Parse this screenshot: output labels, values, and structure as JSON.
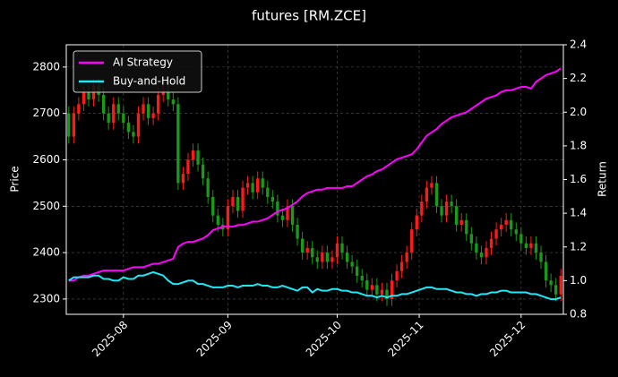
{
  "chart_data": {
    "type": "candlestick",
    "title": "futures [RM.ZCE]",
    "y_label": "Price",
    "y2_label": "Return",
    "categories": [
      null,
      null,
      null,
      null,
      null,
      null,
      null,
      null,
      null,
      null,
      null,
      null,
      null,
      null,
      null,
      null,
      null,
      null,
      null,
      null,
      null,
      null,
      null,
      null,
      null,
      null,
      null,
      null,
      null,
      null,
      null,
      null,
      null,
      null,
      null,
      null,
      null,
      null,
      null,
      null,
      null,
      null,
      null,
      null,
      null,
      null,
      null,
      null,
      null,
      null,
      null,
      null,
      null,
      null,
      null,
      null,
      null,
      null,
      null,
      null,
      null,
      null,
      null,
      null,
      null,
      null,
      null,
      null,
      null,
      null,
      null,
      null,
      null,
      null,
      null,
      null,
      null,
      null,
      null,
      null,
      null,
      null,
      null,
      null,
      null,
      null,
      null,
      null,
      null,
      null,
      null,
      null,
      null,
      null,
      null,
      null,
      null,
      null,
      null,
      null
    ],
    "open": [
      2700,
      2650,
      2700,
      2720,
      2745,
      2730,
      2760,
      2740,
      2700,
      2680,
      2720,
      2700,
      2680,
      2660,
      2650,
      2700,
      2720,
      2690,
      2700,
      2740,
      2750,
      2730,
      2720,
      2550,
      2570,
      2600,
      2620,
      2590,
      2560,
      2520,
      2480,
      2460,
      2450,
      2500,
      2520,
      2490,
      2540,
      2550,
      2530,
      2560,
      2540,
      2520,
      2510,
      2480,
      2470,
      2500,
      2460,
      2430,
      2400,
      2410,
      2390,
      2380,
      2400,
      2380,
      2390,
      2420,
      2400,
      2380,
      2370,
      2350,
      2340,
      2320,
      2330,
      2310,
      2320,
      2300,
      2340,
      2360,
      2380,
      2400,
      2450,
      2480,
      2510,
      2540,
      2550,
      2500,
      2480,
      2510,
      2500,
      2460,
      2470,
      2440,
      2420,
      2400,
      2390,
      2410,
      2430,
      2450,
      2460,
      2470,
      2450,
      2440,
      2420,
      2410,
      2420,
      2400,
      2380,
      2340,
      2330,
      2310
    ],
    "high": [
      2715,
      2715,
      2735,
      2760,
      2760,
      2775,
      2775,
      2755,
      2715,
      2735,
      2735,
      2715,
      2695,
      2675,
      2715,
      2735,
      2735,
      2715,
      2755,
      2765,
      2765,
      2745,
      2735,
      2585,
      2615,
      2635,
      2635,
      2605,
      2575,
      2535,
      2495,
      2475,
      2515,
      2535,
      2535,
      2555,
      2565,
      2565,
      2575,
      2575,
      2555,
      2535,
      2525,
      2495,
      2515,
      2515,
      2475,
      2445,
      2425,
      2425,
      2405,
      2415,
      2415,
      2405,
      2435,
      2435,
      2415,
      2395,
      2385,
      2365,
      2355,
      2345,
      2345,
      2335,
      2335,
      2355,
      2375,
      2395,
      2415,
      2465,
      2495,
      2525,
      2555,
      2565,
      2565,
      2515,
      2525,
      2525,
      2515,
      2485,
      2485,
      2455,
      2435,
      2415,
      2425,
      2445,
      2465,
      2475,
      2485,
      2485,
      2465,
      2455,
      2435,
      2435,
      2435,
      2415,
      2395,
      2355,
      2345,
      2365
    ],
    "low": [
      2635,
      2635,
      2685,
      2705,
      2715,
      2715,
      2725,
      2685,
      2665,
      2665,
      2685,
      2665,
      2645,
      2635,
      2635,
      2685,
      2675,
      2675,
      2685,
      2725,
      2715,
      2705,
      2535,
      2535,
      2555,
      2585,
      2575,
      2545,
      2505,
      2465,
      2445,
      2435,
      2435,
      2485,
      2475,
      2475,
      2525,
      2515,
      2515,
      2525,
      2505,
      2495,
      2465,
      2455,
      2455,
      2445,
      2415,
      2385,
      2385,
      2375,
      2365,
      2365,
      2365,
      2365,
      2375,
      2385,
      2365,
      2355,
      2335,
      2325,
      2305,
      2305,
      2295,
      2295,
      2285,
      2285,
      2325,
      2345,
      2365,
      2385,
      2435,
      2465,
      2495,
      2525,
      2485,
      2465,
      2465,
      2485,
      2445,
      2445,
      2425,
      2405,
      2385,
      2375,
      2375,
      2395,
      2415,
      2435,
      2445,
      2435,
      2425,
      2405,
      2395,
      2395,
      2385,
      2365,
      2325,
      2315,
      2295,
      2295
    ],
    "close": [
      2650,
      2700,
      2720,
      2745,
      2730,
      2760,
      2740,
      2700,
      2680,
      2720,
      2700,
      2680,
      2660,
      2650,
      2700,
      2720,
      2690,
      2700,
      2740,
      2750,
      2730,
      2720,
      2550,
      2570,
      2600,
      2620,
      2590,
      2560,
      2520,
      2480,
      2460,
      2450,
      2500,
      2520,
      2490,
      2540,
      2550,
      2530,
      2560,
      2540,
      2520,
      2510,
      2480,
      2470,
      2500,
      2460,
      2430,
      2400,
      2410,
      2390,
      2380,
      2400,
      2380,
      2390,
      2420,
      2400,
      2380,
      2370,
      2350,
      2340,
      2320,
      2330,
      2310,
      2320,
      2300,
      2340,
      2360,
      2380,
      2400,
      2450,
      2480,
      2510,
      2540,
      2550,
      2500,
      2480,
      2510,
      2500,
      2460,
      2470,
      2440,
      2420,
      2400,
      2390,
      2410,
      2430,
      2450,
      2460,
      2470,
      2450,
      2440,
      2420,
      2410,
      2420,
      2400,
      2380,
      2340,
      2330,
      2310,
      2350
    ],
    "up_color": "#ff1a1a",
    "down_color": "#1a9a1a",
    "series": [
      {
        "name": "AI Strategy",
        "color": "#ff00ff",
        "axis": "y2",
        "values": [
          1.0,
          1.0,
          1.02,
          1.03,
          1.03,
          1.04,
          1.05,
          1.06,
          1.06,
          1.06,
          1.06,
          1.06,
          1.07,
          1.08,
          1.08,
          1.08,
          1.09,
          1.1,
          1.1,
          1.11,
          1.12,
          1.13,
          1.2,
          1.22,
          1.23,
          1.23,
          1.24,
          1.25,
          1.27,
          1.3,
          1.31,
          1.32,
          1.32,
          1.32,
          1.33,
          1.33,
          1.34,
          1.35,
          1.35,
          1.36,
          1.37,
          1.39,
          1.41,
          1.42,
          1.43,
          1.45,
          1.47,
          1.5,
          1.52,
          1.53,
          1.54,
          1.54,
          1.55,
          1.55,
          1.55,
          1.55,
          1.56,
          1.56,
          1.58,
          1.6,
          1.62,
          1.63,
          1.65,
          1.66,
          1.68,
          1.7,
          1.72,
          1.73,
          1.74,
          1.75,
          1.78,
          1.82,
          1.86,
          1.88,
          1.9,
          1.93,
          1.95,
          1.97,
          1.98,
          1.99,
          2.0,
          2.02,
          2.04,
          2.06,
          2.08,
          2.09,
          2.1,
          2.12,
          2.13,
          2.13,
          2.14,
          2.15,
          2.15,
          2.14,
          2.18,
          2.2,
          2.22,
          2.23,
          2.24,
          2.26
        ]
      },
      {
        "name": "Buy-and-Hold",
        "color": "#22e8f5",
        "axis": "y2",
        "values": [
          1.0,
          1.02,
          1.02,
          1.02,
          1.02,
          1.03,
          1.03,
          1.01,
          1.01,
          1.0,
          1.0,
          1.02,
          1.01,
          1.01,
          1.03,
          1.03,
          1.04,
          1.05,
          1.04,
          1.03,
          1.0,
          0.98,
          0.98,
          0.99,
          1.0,
          1.0,
          0.98,
          0.98,
          0.97,
          0.96,
          0.96,
          0.96,
          0.97,
          0.97,
          0.96,
          0.97,
          0.97,
          0.97,
          0.98,
          0.97,
          0.97,
          0.96,
          0.96,
          0.97,
          0.96,
          0.95,
          0.94,
          0.96,
          0.96,
          0.93,
          0.95,
          0.94,
          0.94,
          0.95,
          0.95,
          0.94,
          0.94,
          0.93,
          0.93,
          0.92,
          0.91,
          0.91,
          0.9,
          0.91,
          0.9,
          0.91,
          0.91,
          0.92,
          0.92,
          0.93,
          0.94,
          0.95,
          0.96,
          0.96,
          0.95,
          0.95,
          0.95,
          0.94,
          0.93,
          0.93,
          0.92,
          0.92,
          0.91,
          0.92,
          0.92,
          0.93,
          0.93,
          0.94,
          0.94,
          0.93,
          0.93,
          0.93,
          0.93,
          0.92,
          0.92,
          0.91,
          0.9,
          0.89,
          0.89,
          0.9
        ]
      }
    ],
    "xlim": [
      -0.5,
      99.5
    ],
    "xticks": [
      {
        "value": 11,
        "label": "2025-08"
      },
      {
        "value": 32,
        "label": "2025-09"
      },
      {
        "value": 54,
        "label": "2025-10"
      },
      {
        "value": 70.5,
        "label": "2025-11"
      },
      {
        "value": 91,
        "label": "2025-12"
      }
    ],
    "ylim": [
      2267,
      2848
    ],
    "yticks": [
      2300,
      2400,
      2500,
      2600,
      2700,
      2800
    ],
    "y2lim": [
      0.8,
      2.4
    ],
    "y2ticks": [
      0.8,
      {
        "value": 1,
        "label": "1.0"
      },
      1.2,
      1.4,
      1.6,
      1.8,
      {
        "value": 2,
        "label": "2.0"
      },
      2.2,
      2.4
    ],
    "grid": true,
    "legend": "upper left"
  }
}
